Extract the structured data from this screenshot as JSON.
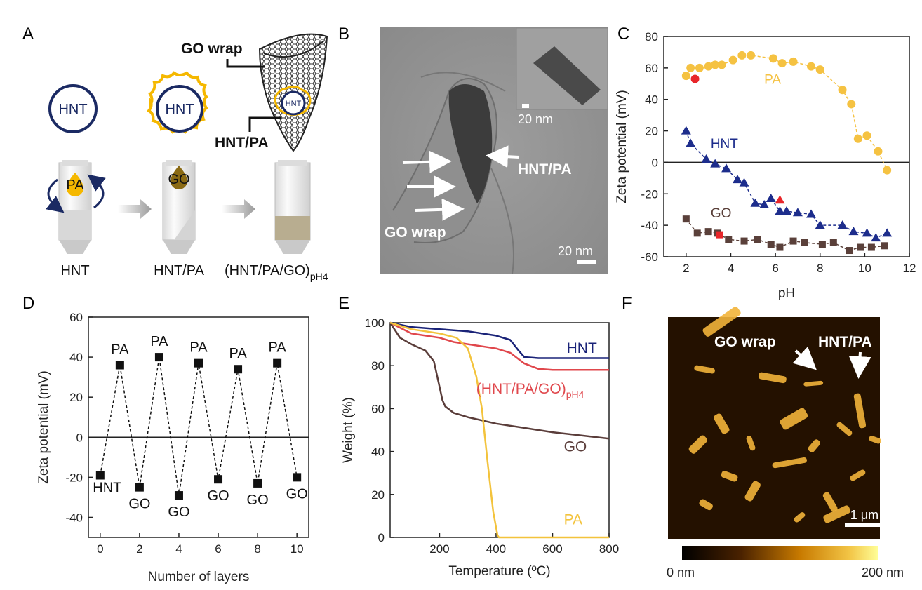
{
  "panel_labels": [
    "A",
    "B",
    "C",
    "D",
    "E",
    "F"
  ],
  "panel_a": {
    "circle_labels": [
      "HNT",
      "HNT",
      "HNT"
    ],
    "drop_labels": [
      "PA",
      "GO"
    ],
    "annot_go_wrap": "GO wrap",
    "annot_hnt_pa": "HNT/PA",
    "step_labels": [
      "HNT",
      "HNT/PA",
      "(HNT/PA/GO)"
    ],
    "step3_sub": "pH4",
    "colors": {
      "navy": "#1b2a63",
      "gold": "#f5b800",
      "go_brown": "#7a5a12",
      "tube": "#e9e9e9",
      "sediment": "#b8ad90"
    }
  },
  "panel_b": {
    "annot_hnt_pa": "HNT/PA",
    "annot_go_wrap": "GO wrap",
    "scale_main": "20 nm",
    "scale_inset": "20 nm"
  },
  "panel_f": {
    "annot_go_wrap": "GO wrap",
    "annot_hnt_pa": "HNT/PA",
    "scale": "1 μm",
    "colorbar_min": "0 nm",
    "colorbar_max": "200 nm"
  },
  "chart_data": [
    {
      "panel": "C",
      "type": "scatter",
      "xlabel": "pH",
      "ylabel": "Zeta potential (mV)",
      "xlim": [
        1,
        12
      ],
      "ylim": [
        -60,
        80
      ],
      "xticks": [
        2,
        4,
        6,
        8,
        10,
        12
      ],
      "yticks": [
        -60,
        -40,
        -20,
        0,
        20,
        40,
        60,
        80
      ],
      "zero_line": true,
      "series": [
        {
          "name": "PA",
          "color": "#f5c242",
          "marker": "circle",
          "x": [
            2.0,
            2.2,
            2.6,
            3.0,
            3.3,
            3.6,
            4.1,
            4.5,
            4.9,
            5.9,
            6.3,
            6.8,
            7.6,
            8.0,
            9.0,
            9.4,
            9.7,
            10.1,
            10.6,
            11.0
          ],
          "y": [
            55,
            60,
            60,
            61,
            62,
            62,
            65,
            68,
            68,
            66,
            63,
            64,
            61,
            59,
            46,
            37,
            15,
            17,
            7,
            -5
          ]
        },
        {
          "name": "HNT",
          "color": "#1d2d8c",
          "marker": "triangle",
          "x": [
            2.0,
            2.2,
            2.9,
            3.3,
            3.8,
            4.3,
            4.6,
            5.1,
            5.5,
            5.8,
            6.2,
            6.5,
            7.0,
            7.6,
            8.0,
            9.0,
            9.5,
            10.1,
            10.5,
            11.0
          ],
          "y": [
            20,
            12,
            2,
            -1,
            -4,
            -11,
            -13,
            -26,
            -27,
            -23,
            -31,
            -31,
            -32,
            -33,
            -40,
            -40,
            -44,
            -45,
            -48,
            -45
          ]
        },
        {
          "name": "GO",
          "color": "#5a403a",
          "marker": "square",
          "x": [
            2.0,
            2.5,
            3.0,
            3.4,
            3.9,
            4.6,
            5.2,
            5.8,
            6.2,
            6.8,
            7.3,
            8.1,
            8.6,
            9.3,
            9.8,
            10.3,
            10.9
          ],
          "y": [
            -36,
            -45,
            -44,
            -45,
            -49,
            -50,
            -49,
            -52,
            -54,
            -50,
            -51,
            -52,
            -51,
            -56,
            -54,
            -54,
            -53
          ]
        },
        {
          "name": "",
          "color": "#e8262a",
          "marker": "mixed",
          "x": [
            2.4,
            3.5,
            6.2
          ],
          "y": [
            53,
            -46,
            -24
          ]
        }
      ]
    },
    {
      "panel": "D",
      "type": "line",
      "xlabel": "Number of layers",
      "ylabel": "Zeta potential (mV)",
      "xlim": [
        -0.6,
        10.6
      ],
      "ylim": [
        -50,
        60
      ],
      "xticks": [
        0,
        2,
        4,
        6,
        8,
        10
      ],
      "yticks": [
        -40,
        -20,
        0,
        20,
        40,
        60
      ],
      "zero_line": true,
      "x": [
        0,
        1,
        2,
        3,
        4,
        5,
        6,
        7,
        8,
        9,
        10
      ],
      "values": [
        -19,
        36,
        -25,
        40,
        -29,
        37,
        -21,
        34,
        -23,
        37,
        -20
      ],
      "point_labels": [
        "HNT",
        "PA",
        "GO",
        "PA",
        "GO",
        "PA",
        "GO",
        "PA",
        "GO",
        "PA",
        "GO"
      ]
    },
    {
      "panel": "E",
      "type": "line",
      "xlabel": "Temperature (ºC)",
      "ylabel": "Weight (%)",
      "xlim": [
        25,
        800
      ],
      "ylim": [
        0,
        100
      ],
      "xticks": [
        200,
        400,
        600,
        800
      ],
      "yticks": [
        0,
        20,
        40,
        60,
        80,
        100
      ],
      "series": [
        {
          "name": "HNT",
          "color": "#1a2378",
          "x": [
            25,
            100,
            200,
            300,
            400,
            450,
            480,
            500,
            550,
            600,
            700,
            800
          ],
          "y": [
            100,
            98,
            97,
            96,
            94,
            92,
            87,
            84,
            83.5,
            83.5,
            83.5,
            83.5
          ]
        },
        {
          "name": "(HNT/PA/GO)",
          "sub": "pH4",
          "color": "#e0474c",
          "x": [
            25,
            100,
            150,
            200,
            250,
            300,
            400,
            450,
            500,
            550,
            600,
            700,
            800
          ],
          "y": [
            100,
            95,
            94,
            93,
            91,
            90,
            88,
            86,
            81,
            78.5,
            78,
            78,
            78
          ]
        },
        {
          "name": "GO",
          "color": "#5a3d3a",
          "x": [
            25,
            60,
            100,
            150,
            180,
            200,
            210,
            220,
            250,
            300,
            400,
            500,
            600,
            700,
            800
          ],
          "y": [
            100,
            93,
            90,
            87,
            82,
            70,
            64,
            61,
            58,
            56,
            53,
            51,
            49,
            47.5,
            46
          ]
        },
        {
          "name": "PA",
          "color": "#f3c33c",
          "x": [
            25,
            100,
            200,
            260,
            300,
            330,
            350,
            370,
            390,
            405,
            410,
            500,
            600,
            700,
            800
          ],
          "y": [
            100,
            97,
            95,
            93,
            88,
            75,
            60,
            35,
            12,
            1,
            0,
            0,
            0,
            0,
            0
          ]
        }
      ]
    }
  ]
}
